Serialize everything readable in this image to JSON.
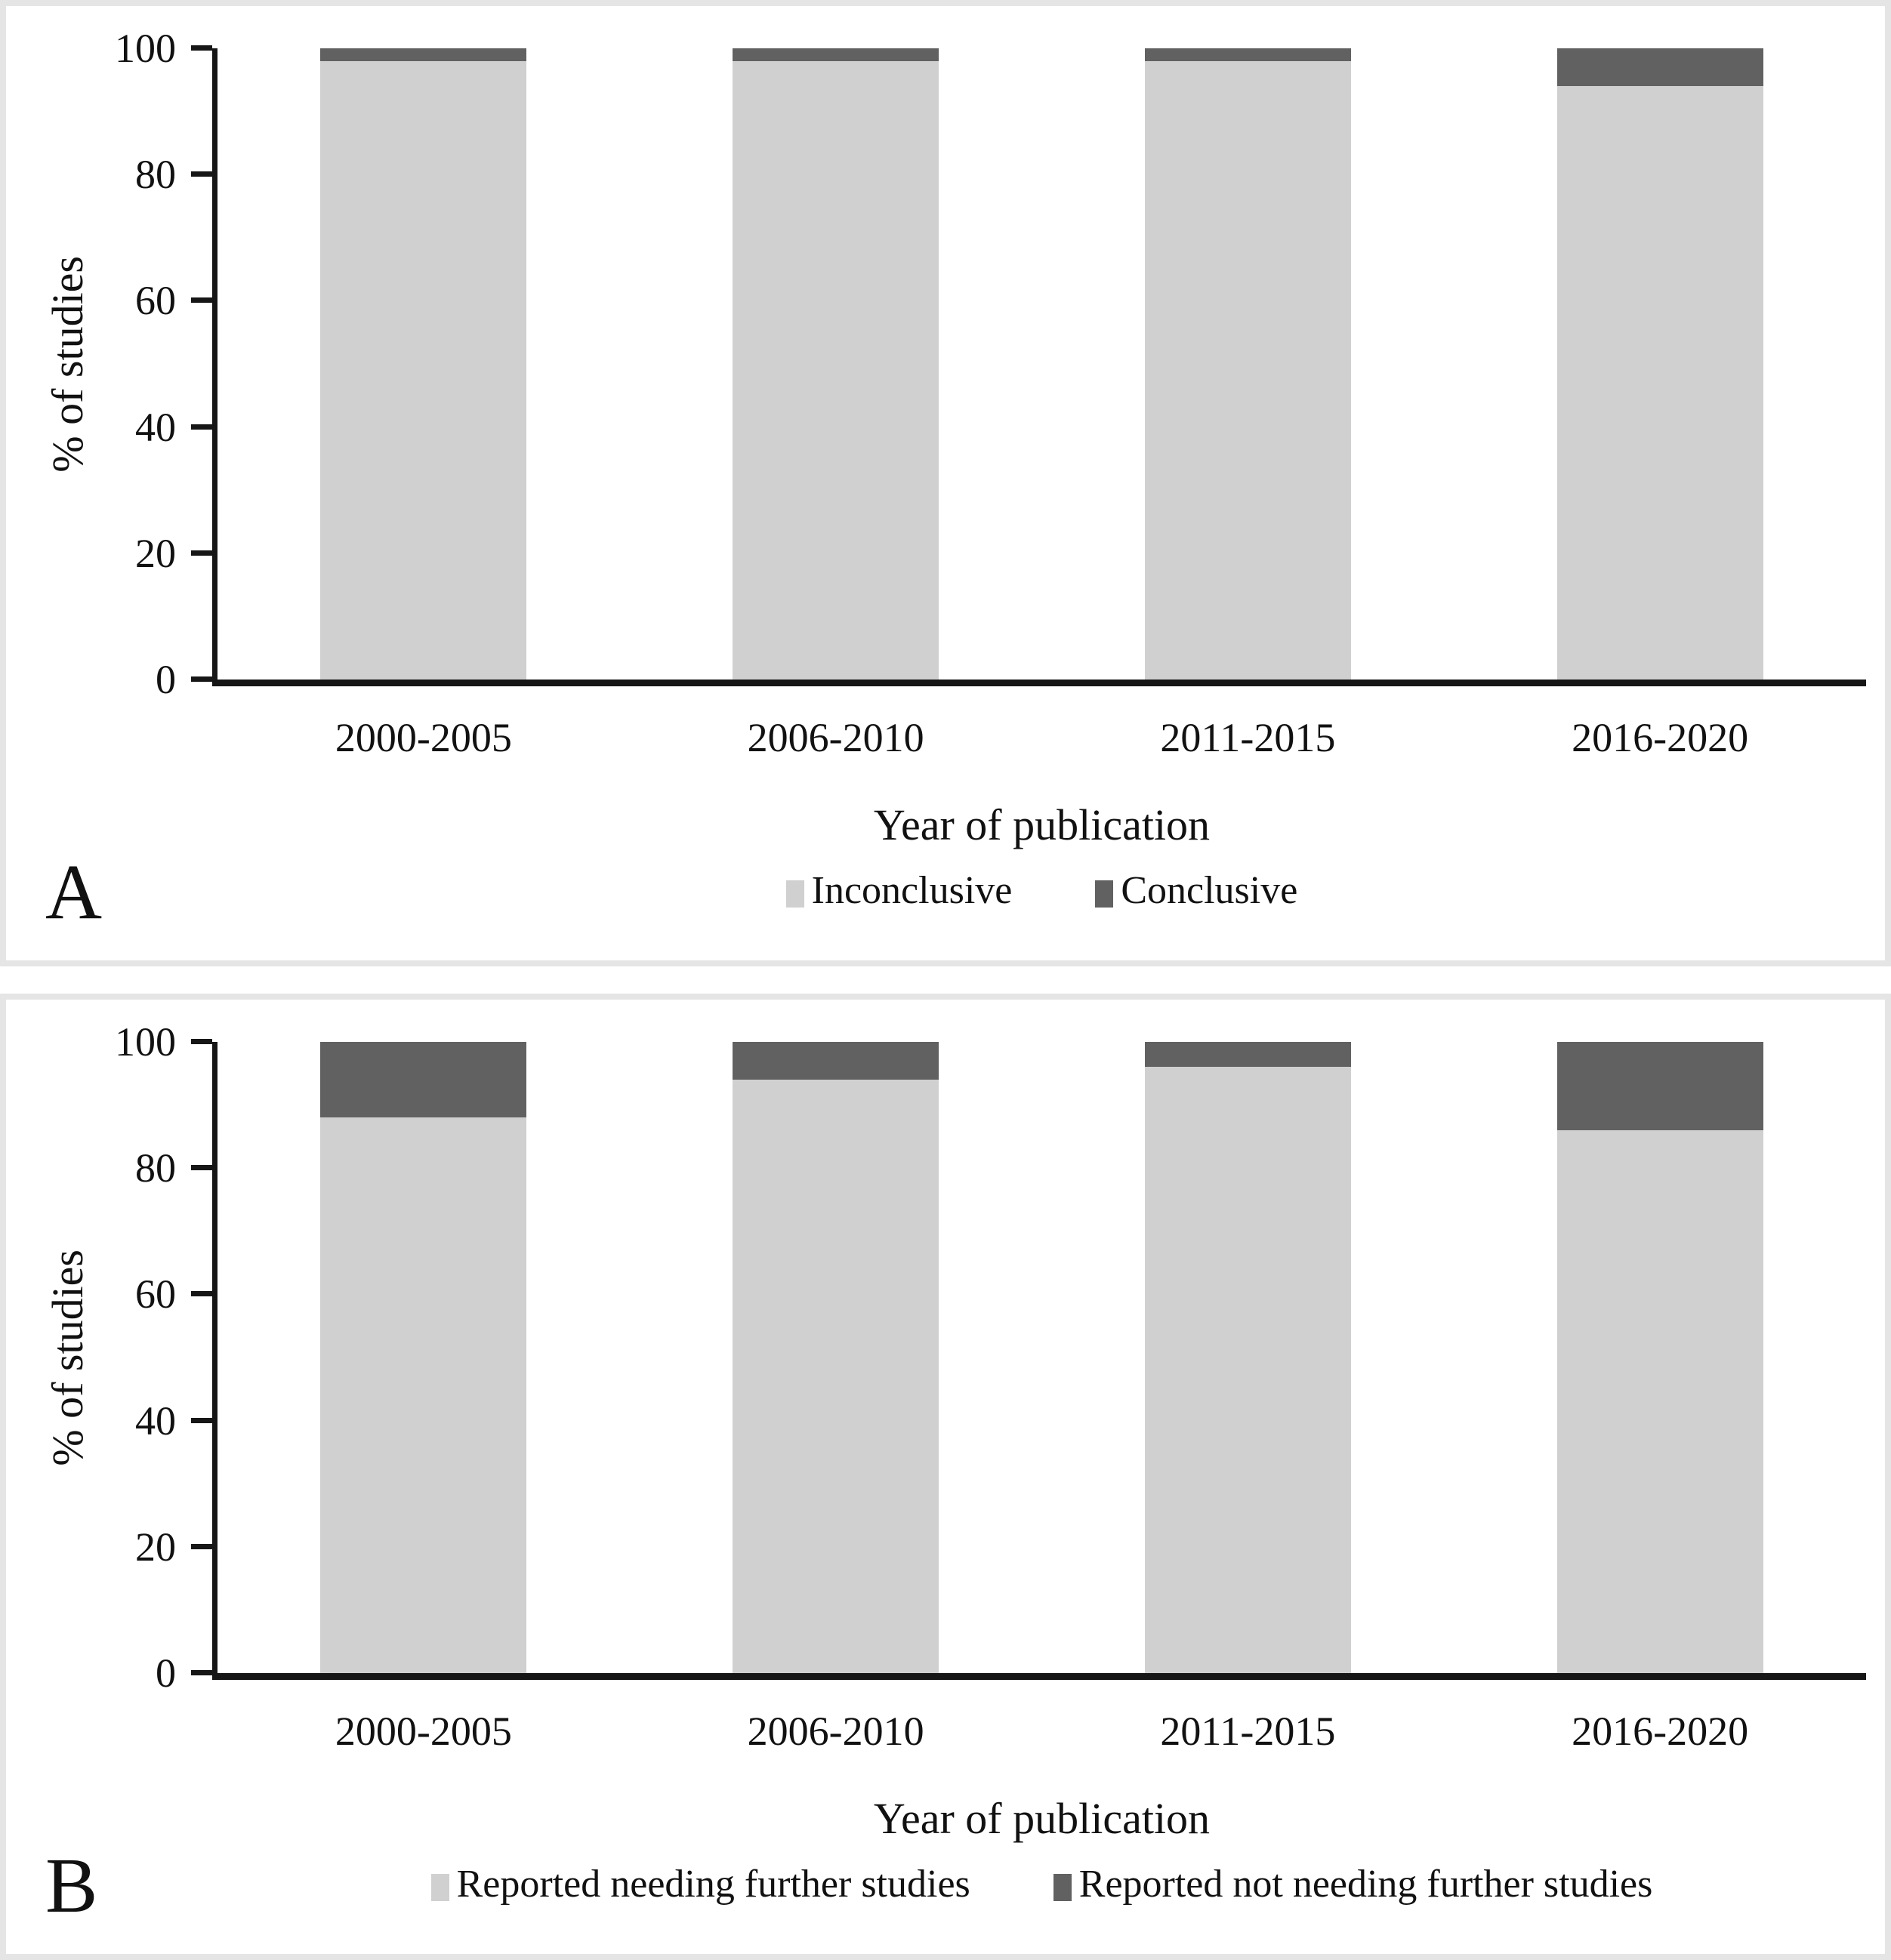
{
  "colors": {
    "light_series": "#d0d0d0",
    "dark_series": "#616161",
    "axis": "#161616",
    "panel_border": "#e5e5e5",
    "background": "#ffffff",
    "text": "#111111"
  },
  "chart_data": [
    {
      "type": "bar",
      "stacked": true,
      "panel_label": "A",
      "title": "",
      "categories": [
        "2000-2005",
        "2006-2010",
        "2011-2015",
        "2016-2020"
      ],
      "series": [
        {
          "name": "Inconclusive",
          "color": "#d0d0d0",
          "values": [
            98,
            98,
            98,
            94
          ]
        },
        {
          "name": "Conclusive",
          "color": "#616161",
          "values": [
            2,
            2,
            2,
            6
          ]
        }
      ],
      "xlabel": "Year of publication",
      "ylabel": "% of studies",
      "ylim": [
        0,
        100
      ],
      "yticks": [
        0,
        20,
        40,
        60,
        80,
        100
      ],
      "grid": false,
      "legend_position": "bottom"
    },
    {
      "type": "bar",
      "stacked": true,
      "panel_label": "B",
      "title": "",
      "categories": [
        "2000-2005",
        "2006-2010",
        "2011-2015",
        "2016-2020"
      ],
      "series": [
        {
          "name": "Reported needing further studies",
          "color": "#d0d0d0",
          "values": [
            88,
            94,
            96,
            86
          ]
        },
        {
          "name": "Reported not needing further studies",
          "color": "#616161",
          "values": [
            12,
            6,
            4,
            14
          ]
        }
      ],
      "xlabel": "Year of publication",
      "ylabel": "% of studies",
      "ylim": [
        0,
        100
      ],
      "yticks": [
        0,
        20,
        40,
        60,
        80,
        100
      ],
      "grid": false,
      "legend_position": "bottom"
    }
  ]
}
